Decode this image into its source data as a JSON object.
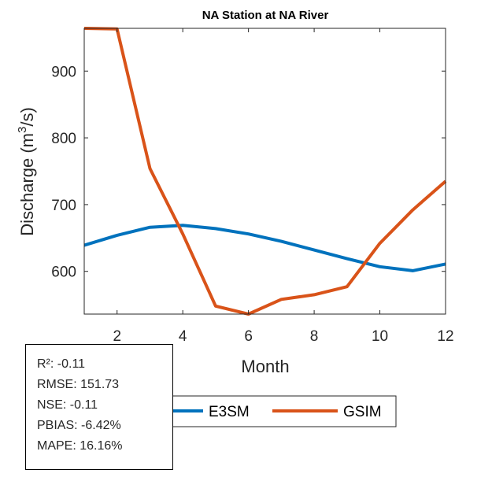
{
  "chart_data": {
    "type": "line",
    "title": "NA  Station at  NA  River",
    "xlabel": "Month",
    "ylabel": "Discharge (m3/s)",
    "ylabel_parts": {
      "main": "Discharge (m",
      "sup": "3",
      "tail": "/s)"
    },
    "xlim": [
      1,
      12
    ],
    "ylim": [
      536,
      964
    ],
    "xticks": [
      2,
      4,
      6,
      8,
      10,
      12
    ],
    "yticks": [
      600,
      700,
      800,
      900
    ],
    "grid": false,
    "legend_position": "bottom-outside",
    "x": [
      1,
      2,
      3,
      4,
      5,
      6,
      7,
      8,
      9,
      10,
      11,
      12
    ],
    "series": [
      {
        "name": "E3SM",
        "color": "#0072BD",
        "values": [
          639,
          654,
          666,
          669,
          664,
          656,
          645,
          632,
          619,
          607,
          601,
          611
        ]
      },
      {
        "name": "GSIM",
        "color": "#D95319",
        "values": [
          964,
          963,
          754,
          656,
          548,
          536,
          558,
          565,
          577,
          642,
          692,
          735
        ]
      }
    ]
  },
  "stats": {
    "lines": [
      "R²: -0.11",
      "RMSE: 151.73",
      "NSE: -0.11",
      "PBIAS: -6.42%",
      "MAPE: 16.16%"
    ]
  }
}
